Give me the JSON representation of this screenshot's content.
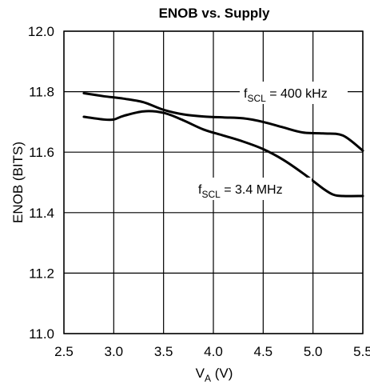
{
  "chart_data": {
    "type": "line",
    "title": "ENOB vs. Supply",
    "xlabel": {
      "main": "V",
      "sub": "A",
      "tail": " (V)"
    },
    "ylabel": "ENOB (BITS)",
    "xlim": [
      2.5,
      5.5
    ],
    "ylim": [
      11.0,
      12.0
    ],
    "x_ticks": [
      2.5,
      3.0,
      3.5,
      4.0,
      4.5,
      5.0,
      5.5
    ],
    "x_tick_labels": [
      "2.5",
      "3.0",
      "3.5",
      "4.0",
      "4.5",
      "5.0",
      "5.5"
    ],
    "y_ticks": [
      11.0,
      11.2,
      11.4,
      11.6,
      11.8,
      12.0
    ],
    "y_tick_labels": [
      "11.0",
      "11.2",
      "11.4",
      "11.6",
      "11.8",
      "12.0"
    ],
    "grid": true,
    "series": [
      {
        "label_parts": {
          "main": "f",
          "sub": "SCL",
          "tail": " = 400 kHz"
        },
        "x": [
          2.7,
          2.9,
          3.1,
          3.3,
          3.5,
          3.7,
          3.9,
          4.1,
          4.3,
          4.5,
          4.7,
          4.9,
          5.1,
          5.3,
          5.5
        ],
        "y": [
          11.795,
          11.785,
          11.777,
          11.765,
          11.74,
          11.725,
          11.718,
          11.715,
          11.712,
          11.7,
          11.682,
          11.665,
          11.662,
          11.655,
          11.605
        ]
      },
      {
        "label_parts": {
          "main": "f",
          "sub": "SCL",
          "tail": " = 3.4 MHz"
        },
        "x": [
          2.7,
          2.9,
          3.0,
          3.1,
          3.3,
          3.5,
          3.7,
          3.9,
          4.1,
          4.3,
          4.5,
          4.7,
          4.9,
          5.1,
          5.2,
          5.3,
          5.5
        ],
        "y": [
          11.717,
          11.708,
          11.708,
          11.72,
          11.735,
          11.73,
          11.705,
          11.675,
          11.655,
          11.635,
          11.61,
          11.575,
          11.53,
          11.48,
          11.46,
          11.455,
          11.455
        ]
      }
    ],
    "annotations": [
      {
        "series": 0,
        "position": "upper-right"
      },
      {
        "series": 1,
        "position": "lower-right"
      }
    ]
  }
}
